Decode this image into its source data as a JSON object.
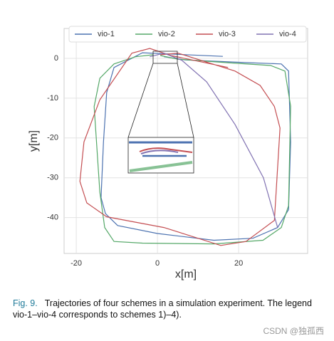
{
  "chart_data": {
    "type": "line",
    "xlabel": "x[m]",
    "ylabel": "y[m]",
    "xlim": [
      -23,
      37
    ],
    "ylim": [
      -49,
      7.5
    ],
    "xticks": [
      -20,
      0,
      20
    ],
    "yticks": [
      0,
      -10,
      -20,
      -30,
      -40
    ],
    "grid": true,
    "legend": "top",
    "series": [
      {
        "name": "vio-1",
        "color": "#4c72b0",
        "x": [
          16.1,
          -3.7,
          -10.7,
          -12.5,
          -13.3,
          -13.9,
          -12.8,
          -9.8,
          0,
          13.9,
          23.5,
          29.6,
          32.3,
          32.8,
          32.3,
          30.5,
          22.6,
          6.8,
          1.6
        ],
        "values": [
          0.5,
          1.4,
          -2.3,
          -8.6,
          -21,
          -35,
          -39,
          -42,
          -44,
          -45.7,
          -45.2,
          -42.5,
          -38,
          -21,
          -3.2,
          -1.4,
          -1.1,
          -0.4,
          0.4
        ]
      },
      {
        "name": "vio-2",
        "color": "#55a868",
        "x": [
          0.7,
          5,
          17.4,
          27.9,
          31.4,
          32.8,
          32.3,
          30.5,
          26,
          13.9,
          -3.7,
          -10.7,
          -13,
          -14.2,
          -15.6,
          -14.2,
          -10.7,
          -5.4,
          -1
        ],
        "values": [
          0.7,
          -0.2,
          -1.1,
          -1.8,
          -3.2,
          -12,
          -37,
          -42.5,
          -45.7,
          -46.6,
          -46.4,
          -46,
          -42.5,
          -33.6,
          -12.1,
          -5,
          -1.4,
          0.4,
          0.9
        ]
      },
      {
        "name": "vio-3",
        "color": "#c44e52",
        "x": [
          17.4,
          3.3,
          -1.9,
          -6.3,
          -14.2,
          -18.1,
          -19.1,
          -17.4,
          -12.5,
          1.6,
          15.6,
          21.8,
          28.8,
          30.2,
          28.8,
          25.3,
          19.1,
          5.1,
          0.7
        ],
        "values": [
          -2.3,
          0.7,
          2.5,
          1.3,
          -10.4,
          -21,
          -30.9,
          -36.3,
          -39.8,
          -42.5,
          -47,
          -46,
          -40.7,
          -17.5,
          -12.1,
          -6.8,
          -3.2,
          1.3,
          0.9
        ]
      },
      {
        "name": "vio-4",
        "color": "#8172b2",
        "x": [
          -1.9,
          1.6,
          6,
          12.1,
          19.1,
          26.1,
          29.6
        ],
        "values": [
          0.4,
          1.3,
          -0.5,
          -5.9,
          -16.6,
          -30,
          -42.5
        ]
      }
    ]
  },
  "caption": {
    "label": "Fig. 9.",
    "text": "Trajectories of four schemes in a simulation experiment. The legend vio-1–vio-4 corresponds to schemes 1)–4)."
  },
  "watermark": "CSDN @独孤西"
}
